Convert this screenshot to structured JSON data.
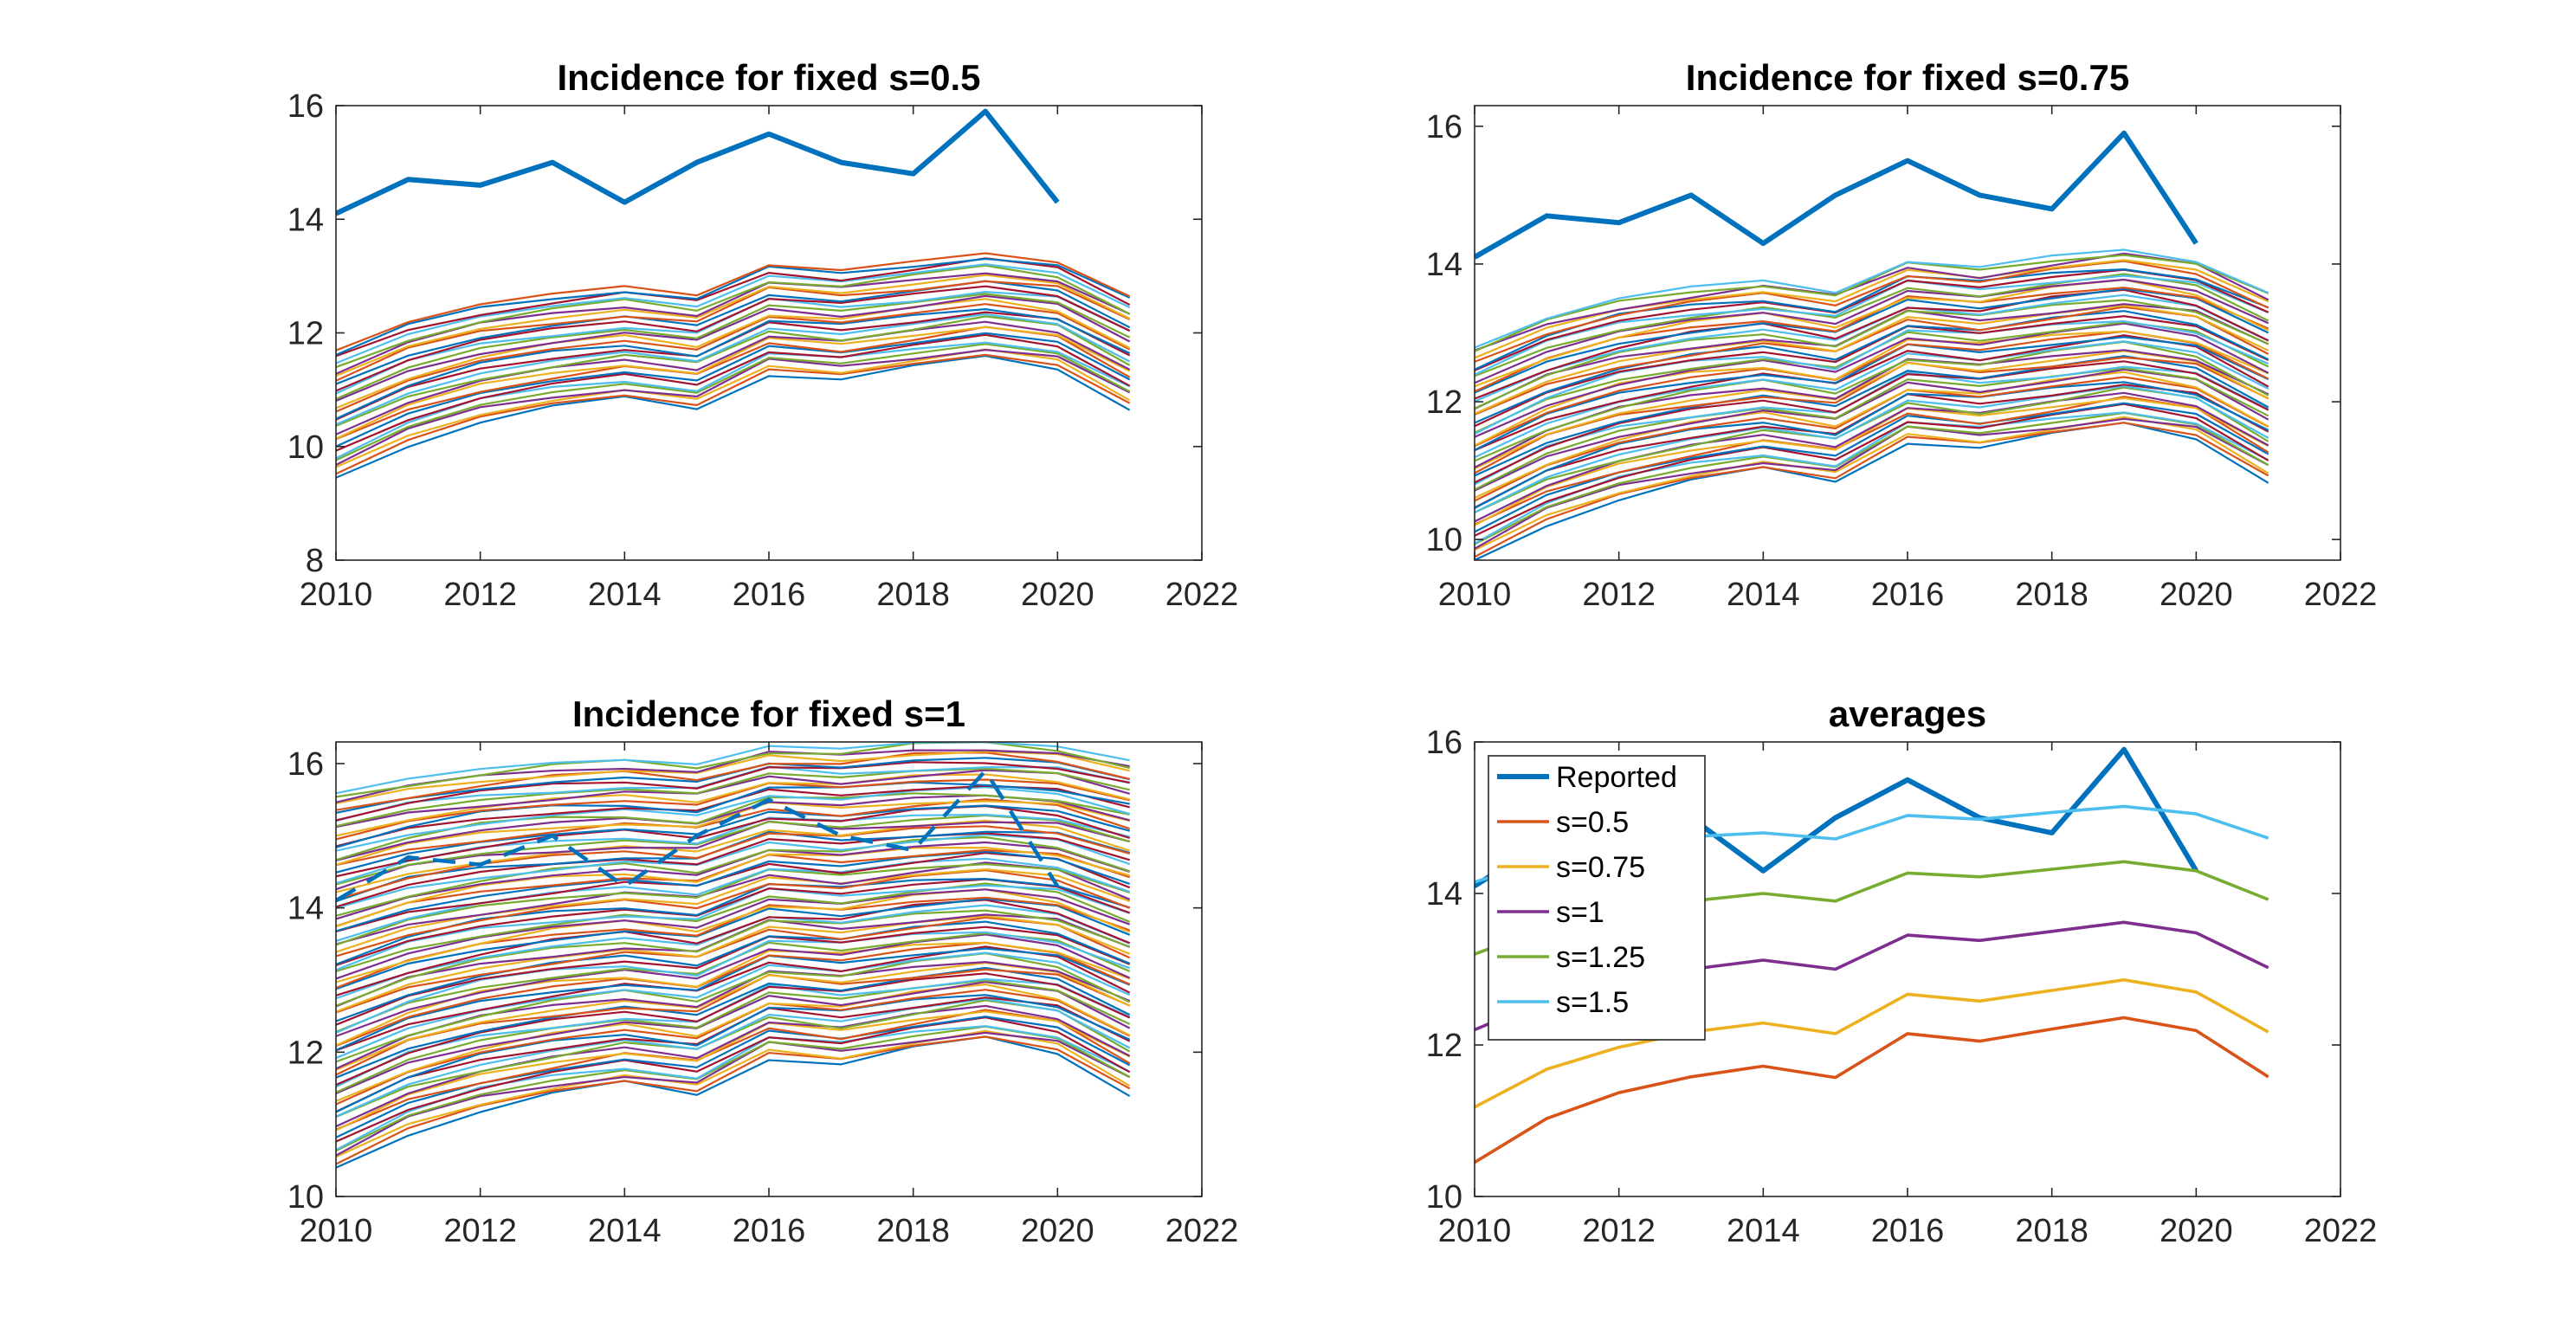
{
  "chart_data": [
    {
      "type": "line",
      "title": "Incidence for fixed s=0.5",
      "xlim": [
        2010,
        2022
      ],
      "ylim": [
        8,
        16
      ],
      "xticks": [
        2010,
        2012,
        2014,
        2016,
        2018,
        2020,
        2022
      ],
      "yticks": [
        8,
        10,
        12,
        14,
        16
      ],
      "grid": false,
      "reported": {
        "x": [
          2010,
          2011,
          2012,
          2013,
          2014,
          2015,
          2016,
          2017,
          2018,
          2019,
          2020
        ],
        "y": [
          14.1,
          14.7,
          14.6,
          15.0,
          14.3,
          15.0,
          15.5,
          15.0,
          14.8,
          15.9,
          14.3
        ],
        "color": "#0072BD"
      },
      "ensemble": {
        "x": [
          2010,
          2011,
          2012,
          2013,
          2014,
          2015,
          2016,
          2017,
          2018,
          2019,
          2020,
          2021
        ],
        "count": 30,
        "lower": [
          9.45,
          10.05,
          10.45,
          10.68,
          10.83,
          10.67,
          11.3,
          11.2,
          11.38,
          11.55,
          11.38,
          10.7
        ],
        "upper": [
          11.7,
          12.2,
          12.5,
          12.68,
          12.82,
          12.67,
          13.2,
          13.1,
          13.25,
          13.4,
          13.25,
          12.65
        ]
      }
    },
    {
      "type": "line",
      "title": "Incidence for fixed s=0.75",
      "xlim": [
        2010,
        2022
      ],
      "ylim": [
        9.7,
        16.3
      ],
      "xticks": [
        2010,
        2012,
        2014,
        2016,
        2018,
        2020,
        2022
      ],
      "yticks": [
        10,
        12,
        14,
        16
      ],
      "grid": false,
      "reported": {
        "x": [
          2010,
          2011,
          2012,
          2013,
          2014,
          2015,
          2016,
          2017,
          2018,
          2019,
          2020
        ],
        "y": [
          14.1,
          14.7,
          14.6,
          15.0,
          14.3,
          15.0,
          15.5,
          15.0,
          14.8,
          15.9,
          14.3
        ],
        "color": "#0072BD"
      },
      "ensemble": {
        "x": [
          2010,
          2011,
          2012,
          2013,
          2014,
          2015,
          2016,
          2017,
          2018,
          2019,
          2020,
          2021
        ],
        "count": 55,
        "lower": [
          9.7,
          10.25,
          10.6,
          10.83,
          11.0,
          10.85,
          11.45,
          11.35,
          11.5,
          11.65,
          11.48,
          10.88
        ],
        "upper": [
          12.8,
          13.23,
          13.5,
          13.65,
          13.75,
          13.6,
          14.05,
          13.95,
          14.1,
          14.2,
          14.05,
          13.6
        ]
      }
    },
    {
      "type": "line",
      "title": "Incidence for fixed s=1",
      "xlim": [
        2010,
        2022
      ],
      "ylim": [
        10,
        16.3
      ],
      "xticks": [
        2010,
        2012,
        2014,
        2016,
        2018,
        2020,
        2022
      ],
      "yticks": [
        10,
        12,
        14,
        16
      ],
      "grid": false,
      "reported": {
        "x": [
          2010,
          2011,
          2012,
          2013,
          2014,
          2015,
          2016,
          2017,
          2018,
          2019,
          2020
        ],
        "y": [
          14.1,
          14.7,
          14.6,
          15.0,
          14.3,
          15.0,
          15.5,
          15.0,
          14.8,
          15.9,
          14.3
        ],
        "color": "#0072BD",
        "dashed": true
      },
      "ensemble": {
        "x": [
          2010,
          2011,
          2012,
          2013,
          2014,
          2015,
          2016,
          2017,
          2018,
          2019,
          2020,
          2021
        ],
        "count": 90,
        "lower": [
          10.4,
          10.9,
          11.2,
          11.4,
          11.55,
          11.42,
          11.95,
          11.85,
          12.03,
          12.17,
          12.0,
          11.45
        ],
        "upper": [
          15.6,
          15.8,
          15.92,
          16.0,
          16.05,
          16.0,
          16.25,
          16.2,
          16.28,
          16.3,
          16.25,
          16.05
        ]
      }
    },
    {
      "type": "line",
      "title": "averages",
      "xlim": [
        2010,
        2022
      ],
      "ylim": [
        10,
        16
      ],
      "xticks": [
        2010,
        2012,
        2014,
        2016,
        2018,
        2020,
        2022
      ],
      "yticks": [
        10,
        12,
        14,
        16
      ],
      "grid": false,
      "legend_position": "top-left",
      "x": [
        2010,
        2011,
        2012,
        2013,
        2014,
        2015,
        2016,
        2017,
        2018,
        2019,
        2020,
        2021
      ],
      "series": [
        {
          "name": "Reported",
          "color": "#0072BD",
          "bold": true,
          "values": [
            14.1,
            14.7,
            14.6,
            15.0,
            14.3,
            15.0,
            15.5,
            15.0,
            14.8,
            15.9,
            14.3,
            null
          ]
        },
        {
          "name": "s=0.5",
          "color": "#D95319",
          "values": [
            10.45,
            11.03,
            11.37,
            11.58,
            11.72,
            11.57,
            12.15,
            12.05,
            12.21,
            12.36,
            12.19,
            11.58
          ]
        },
        {
          "name": "s=0.75",
          "color": "#EDB120",
          "values": [
            11.18,
            11.68,
            11.97,
            12.17,
            12.29,
            12.15,
            12.67,
            12.58,
            12.72,
            12.86,
            12.7,
            12.17
          ]
        },
        {
          "name": "s=1",
          "color": "#7E2F8E",
          "values": [
            12.2,
            12.6,
            12.85,
            13.0,
            13.12,
            13.0,
            13.45,
            13.38,
            13.5,
            13.62,
            13.48,
            13.02
          ]
        },
        {
          "name": "s=1.25",
          "color": "#77AC30",
          "values": [
            13.2,
            13.55,
            13.75,
            13.9,
            14.0,
            13.9,
            14.27,
            14.22,
            14.32,
            14.42,
            14.3,
            13.92
          ]
        },
        {
          "name": "s=1.5",
          "color": "#4DBEEE",
          "values": [
            14.15,
            14.45,
            14.62,
            14.75,
            14.8,
            14.72,
            15.03,
            14.98,
            15.07,
            15.15,
            15.05,
            14.73
          ]
        }
      ]
    }
  ]
}
